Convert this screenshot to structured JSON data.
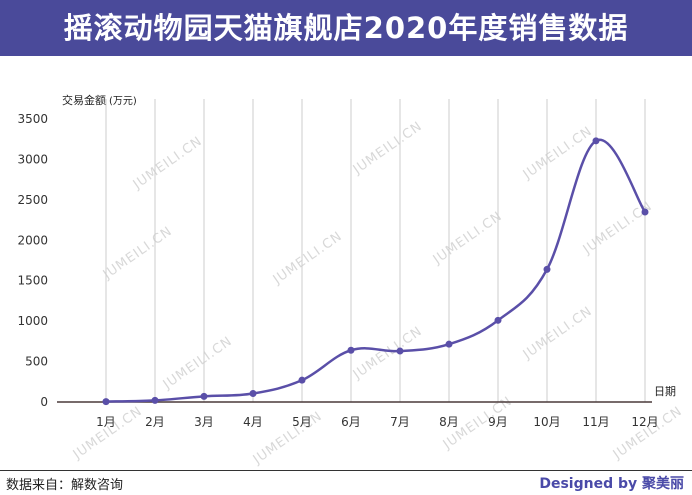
{
  "title": "摇滚动物园天猫旗舰店2020年度销售数据",
  "footer": {
    "source": "数据来自：解数咨询",
    "brand": "Designed by 聚美丽"
  },
  "watermark": "JUMEILI.CN",
  "colors": {
    "title_bg": "#4a4a9a",
    "line": "#5a4fa8",
    "grid": "#cccccc"
  },
  "chart_data": {
    "type": "line",
    "ylabel": "交易金额",
    "yunit": "(万元)",
    "xlabel": "日期",
    "categories": [
      "1月",
      "2月",
      "3月",
      "4月",
      "5月",
      "6月",
      "7月",
      "8月",
      "9月",
      "10月",
      "11月",
      "12月"
    ],
    "values": [
      5,
      20,
      70,
      105,
      270,
      640,
      630,
      715,
      1010,
      1640,
      3230,
      2350
    ],
    "ylim": [
      0,
      3500
    ],
    "yticks": [
      0,
      500,
      1000,
      1500,
      2000,
      2500,
      3000,
      3500
    ],
    "grid": "vertical",
    "smooth": true
  }
}
